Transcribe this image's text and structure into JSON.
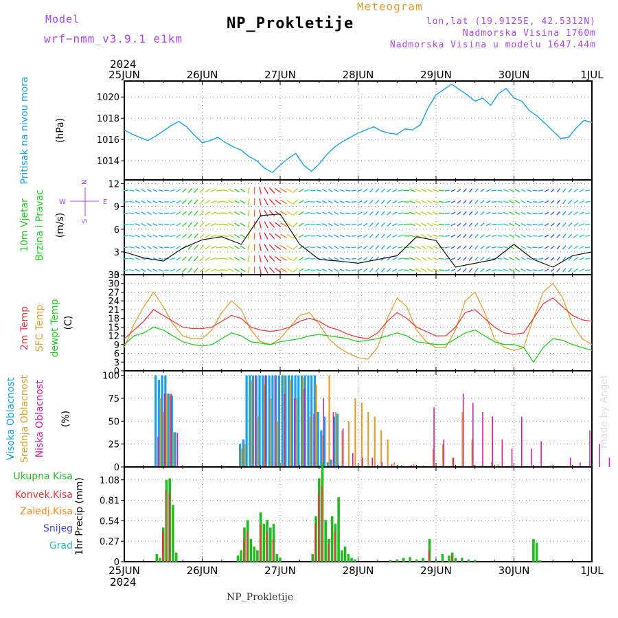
{
  "header": {
    "model_label": "Model",
    "model_name": "wrf−nmm_v3.9.1  e1km",
    "station": "NP_Prokletije",
    "product": "Meteogram",
    "coords": "lon,lat (19.9125E, 42.5312N)",
    "altitude": "Nadmorska Visina 1760m",
    "model_altitude": "Nadmorska Visina u modelu 1647.44m",
    "year": "2024",
    "footer_station": "NP_Prokletije",
    "credit": "made by Angel"
  },
  "colors": {
    "pressure": "#1aa0e6",
    "temp2m": "#f03c3c",
    "sfc": "#e0a030",
    "dewpoint": "#22cc22",
    "high": "#1aa0e6",
    "mid": "#e0a030",
    "low": "#cc22aa",
    "precip_total": "#22bb22",
    "precip_conv": "#ee3333",
    "precip_frozen": "#ff8822",
    "precip_snow": "#4444ee",
    "precip_hail": "#22bbbb",
    "wind_axis_label": "#aa44ee",
    "model_text": "#aa44ee",
    "product_text": "#e0a030",
    "info_text": "#aa44ee"
  },
  "time_axis": {
    "labels": [
      "25JUN",
      "26JUN",
      "27JUN",
      "28JUN",
      "29JUN",
      "30JUN",
      "1JUL"
    ],
    "start": "2024-06-25T00:00Z",
    "end": "2024-07-01T00:00Z"
  },
  "panels": {
    "pressure": {
      "ylabel_1": "Pritisak na nivou mora",
      "unit": "(hPa)",
      "yticks": [
        1014,
        1016,
        1018,
        1020
      ]
    },
    "wind": {
      "ylabel_1": "10m Vjetar",
      "ylabel_2": "Brzina i Pravac",
      "unit": "(m/s)",
      "yticks": [
        0,
        3,
        6,
        9,
        12
      ],
      "legend": {
        "n": "N",
        "s": "S",
        "w": "W",
        "e": "E"
      }
    },
    "temperature": {
      "ylabel_1": "2m Temp",
      "ylabel_2": "SFC Temp",
      "ylabel_3": "dewpt Temp",
      "unit": "(C)",
      "yticks": [
        0,
        3,
        6,
        9,
        12,
        15,
        18,
        21,
        24,
        27,
        30,
        33
      ]
    },
    "clouds": {
      "ylabel_1": "Visoka Oblacnost",
      "ylabel_2": "Srednja Oblacnost",
      "ylabel_3": "Niska Oblacnost",
      "unit": "(%)",
      "yticks": [
        0,
        25,
        50,
        75,
        100
      ]
    },
    "precip": {
      "legend_total": "Ukupna Kisa",
      "legend_conv": "Konvek.Kisa",
      "legend_frozen": "Zaledj.Kisa",
      "legend_snow": "Snijeg",
      "legend_hail": "Grad",
      "ylabel": "1hr Precip (mm)",
      "yticks": [
        0,
        0.27,
        0.54,
        0.81,
        1.08
      ]
    }
  },
  "chart_data": [
    {
      "type": "line",
      "title": "Pritisak na nivou mora",
      "ylabel": "(hPa)",
      "ylim": [
        1012.2,
        1021.5
      ],
      "x_days": [
        0,
        0.1,
        0.2,
        0.3,
        0.4,
        0.5,
        0.6,
        0.7,
        0.8,
        0.9,
        1.0,
        1.1,
        1.2,
        1.3,
        1.4,
        1.5,
        1.6,
        1.7,
        1.8,
        1.9,
        2.0,
        2.1,
        2.2,
        2.3,
        2.4,
        2.5,
        2.6,
        2.7,
        2.8,
        2.9,
        3.0,
        3.1,
        3.2,
        3.3,
        3.4,
        3.5,
        3.6,
        3.7,
        3.8,
        3.9,
        4.0,
        4.1,
        4.2,
        4.3,
        4.4,
        4.5,
        4.6,
        4.7,
        4.8,
        4.9,
        5.0,
        5.1,
        5.2,
        5.3,
        5.4,
        5.5,
        5.6,
        5.7,
        5.8,
        5.9,
        6.0
      ],
      "series": [
        {
          "name": "Pritisak na nivou mora",
          "values": [
            1016.9,
            1016.5,
            1016.2,
            1015.9,
            1016.3,
            1016.8,
            1017.3,
            1017.7,
            1017.2,
            1016.4,
            1015.7,
            1015.9,
            1016.2,
            1015.7,
            1015.3,
            1015.0,
            1014.4,
            1014.0,
            1013.3,
            1012.9,
            1013.6,
            1014.2,
            1014.7,
            1013.6,
            1013.0,
            1013.7,
            1014.6,
            1015.3,
            1015.8,
            1016.2,
            1016.6,
            1016.9,
            1017.2,
            1016.8,
            1016.6,
            1016.5,
            1017.0,
            1016.9,
            1017.4,
            1019.0,
            1020.2,
            1020.7,
            1021.2,
            1020.7,
            1020.2,
            1019.6,
            1019.9,
            1019.2,
            1020.3,
            1020.8,
            1019.9,
            1019.6,
            1018.7,
            1018.2,
            1017.5,
            1016.8,
            1016.1,
            1016.2,
            1017.1,
            1017.8,
            1017.6
          ]
        }
      ]
    },
    {
      "type": "line",
      "title": "10m Vjetar Brzina i Pravac",
      "ylabel": "(m/s)",
      "ylim": [
        0,
        12.5
      ],
      "x_days": [
        0,
        0.25,
        0.5,
        0.75,
        1.0,
        1.25,
        1.5,
        1.75,
        2.0,
        2.25,
        2.5,
        2.75,
        3.0,
        3.25,
        3.5,
        3.75,
        4.0,
        4.25,
        4.5,
        4.75,
        5.0,
        5.25,
        5.5,
        5.75,
        6.0
      ],
      "series": [
        {
          "name": "10m Vjetar",
          "values": [
            3.0,
            2.2,
            1.8,
            3.5,
            4.6,
            5.0,
            4.0,
            7.8,
            8.0,
            4.0,
            2.0,
            1.8,
            1.5,
            2.0,
            2.5,
            5.0,
            4.5,
            1.0,
            1.5,
            2.0,
            4.0,
            2.0,
            1.0,
            2.5,
            3.0
          ]
        }
      ]
    },
    {
      "type": "line",
      "title": "2m Temp / SFC Temp / dewpt Temp",
      "ylabel": "(C)",
      "ylim": [
        0,
        33
      ],
      "x_days": [
        0,
        0.125,
        0.25,
        0.375,
        0.5,
        0.625,
        0.75,
        0.875,
        1.0,
        1.125,
        1.25,
        1.375,
        1.5,
        1.625,
        1.75,
        1.875,
        2.0,
        2.125,
        2.25,
        2.375,
        2.5,
        2.625,
        2.75,
        2.875,
        3.0,
        3.125,
        3.25,
        3.375,
        3.5,
        3.625,
        3.75,
        3.875,
        4.0,
        4.125,
        4.25,
        4.375,
        4.5,
        4.625,
        4.75,
        4.875,
        5.0,
        5.125,
        5.25,
        5.375,
        5.5,
        5.625,
        5.75,
        5.875,
        6.0
      ],
      "series": [
        {
          "name": "2m Temp",
          "values": [
            11,
            14,
            17,
            21,
            19,
            17,
            15,
            14.5,
            14.5,
            15,
            17,
            19,
            18,
            15,
            14,
            13.5,
            14,
            15,
            17,
            18,
            17,
            15,
            14,
            12.5,
            11.5,
            11,
            13,
            17,
            20,
            18,
            15,
            13.5,
            12,
            12,
            15,
            20,
            21,
            18,
            15,
            13,
            12.5,
            13,
            18,
            23,
            25,
            22,
            19,
            17.5,
            17
          ]
        },
        {
          "name": "SFC Temp",
          "values": [
            8,
            16,
            22,
            27,
            22,
            16,
            12,
            11,
            11,
            14,
            20,
            24,
            21,
            14,
            10,
            9,
            11,
            15,
            19,
            20,
            16,
            11,
            8,
            6,
            4.5,
            4,
            8,
            18,
            25,
            22,
            14,
            10,
            8,
            8,
            14,
            24,
            27,
            20,
            11,
            8,
            7,
            8,
            18,
            27,
            30,
            25,
            16,
            11,
            9
          ]
        },
        {
          "name": "dewpt Temp",
          "values": [
            9,
            12,
            13,
            15,
            14,
            12,
            10,
            9,
            8.5,
            9,
            11,
            13,
            12,
            10,
            9.5,
            9,
            10,
            10.5,
            11,
            12,
            12.5,
            12,
            11.5,
            11,
            10,
            10.5,
            11,
            12,
            13,
            12,
            10,
            9.5,
            9,
            9,
            11,
            13,
            14,
            12,
            10,
            9,
            9,
            8,
            3,
            8,
            11,
            10.5,
            9,
            8,
            7
          ]
        }
      ]
    },
    {
      "type": "bar",
      "title": "Visoka / Srednja / Niska Oblacnost",
      "ylabel": "(%)",
      "ylim": [
        0,
        105
      ],
      "series": [
        {
          "name": "Visoka Oblacnost",
          "x_hours": [
            10,
            11,
            12,
            13,
            14,
            15,
            16,
            36,
            37,
            38,
            39,
            40,
            41,
            42,
            43,
            44,
            45,
            46,
            47,
            48,
            49,
            50,
            51,
            52,
            53,
            54,
            55,
            56,
            57,
            58,
            59,
            60,
            61,
            62,
            63,
            64,
            65,
            66
          ],
          "values": [
            100,
            95,
            100,
            100,
            80,
            78,
            38,
            25,
            30,
            100,
            100,
            100,
            100,
            100,
            100,
            100,
            100,
            100,
            100,
            100,
            100,
            100,
            100,
            100,
            100,
            100,
            100,
            100,
            100,
            100,
            100,
            60,
            40,
            55,
            5,
            8,
            55,
            58
          ]
        },
        {
          "name": "Srednja Oblacnost",
          "x_hours": [
            11,
            12,
            13,
            14,
            15,
            36,
            37,
            39,
            41,
            43,
            45,
            47,
            49,
            51,
            53,
            55,
            57,
            59,
            61,
            63,
            65,
            67,
            69,
            71,
            73,
            75,
            77,
            79,
            81,
            83,
            89,
            92,
            95,
            98,
            101,
            104,
            107,
            110,
            113,
            115
          ],
          "values": [
            75,
            60,
            80,
            78,
            38,
            20,
            25,
            95,
            55,
            90,
            75,
            50,
            100,
            95,
            75,
            98,
            55,
            90,
            35,
            100,
            60,
            40,
            50,
            75,
            70,
            60,
            55,
            40,
            30,
            5,
            3,
            2,
            20,
            25,
            10,
            60,
            30,
            2,
            5,
            3
          ]
        },
        {
          "name": "Niska Oblacnost",
          "x_hours": [
            10,
            12,
            14,
            16,
            40,
            43,
            46,
            49,
            52,
            55,
            58,
            61,
            64,
            67,
            70,
            73,
            76,
            79,
            82,
            85,
            88,
            95,
            98,
            101,
            104,
            107,
            110,
            113,
            116,
            119,
            122,
            125,
            128,
            131,
            137,
            140,
            143,
            146,
            149
          ],
          "values": [
            33,
            80,
            80,
            37,
            100,
            100,
            100,
            80,
            75,
            85,
            58,
            75,
            60,
            42,
            15,
            10,
            10,
            5,
            3,
            2,
            2,
            65,
            30,
            10,
            80,
            70,
            60,
            55,
            30,
            20,
            55,
            20,
            28,
            2,
            10,
            5,
            40,
            25,
            10
          ]
        }
      ]
    },
    {
      "type": "bar",
      "title": "1hr Precip",
      "ylabel": "1hr Precip (mm)",
      "ylim": [
        0,
        1.25
      ],
      "series": [
        {
          "name": "Ukupna Kisa",
          "x_hours": [
            10,
            11,
            12,
            13,
            14,
            15,
            16,
            35,
            36,
            37,
            38,
            39,
            40,
            41,
            42,
            43,
            44,
            45,
            46,
            47,
            48,
            58,
            59,
            60,
            61,
            62,
            63,
            64,
            65,
            66,
            67,
            68,
            69,
            70,
            71,
            82,
            84,
            86,
            88,
            90,
            92,
            94,
            96,
            98,
            100,
            101,
            102,
            104,
            106,
            108,
            126,
            127,
            128
          ],
          "values": [
            0.1,
            0.05,
            0.45,
            1.08,
            1.1,
            0.75,
            0.12,
            0.08,
            0.15,
            0.45,
            0.55,
            0.3,
            0.2,
            0.15,
            0.65,
            0.5,
            0.55,
            0.45,
            0.5,
            0.1,
            0.05,
            0.1,
            0.6,
            1.1,
            1.3,
            0.55,
            0.3,
            0.6,
            0.5,
            0.85,
            0.15,
            0.2,
            0.1,
            0.05,
            0.03,
            0.02,
            0.03,
            0.05,
            0.06,
            0.03,
            0.05,
            0.3,
            0.02,
            0.1,
            0.08,
            0.12,
            0.05,
            0.05,
            0.03,
            0.02,
            0.3,
            0.25,
            0.02
          ]
        },
        {
          "name": "Konvek.Kisa",
          "x_hours": [
            12,
            13,
            14,
            37,
            38,
            42,
            44,
            46,
            59,
            60,
            61,
            63,
            65,
            94,
            101
          ],
          "values": [
            0.4,
            0.95,
            0.9,
            0.3,
            0.4,
            0.5,
            0.4,
            0.3,
            0.5,
            0.9,
            1.0,
            0.25,
            0.4,
            0.15,
            0.08
          ]
        }
      ]
    }
  ]
}
